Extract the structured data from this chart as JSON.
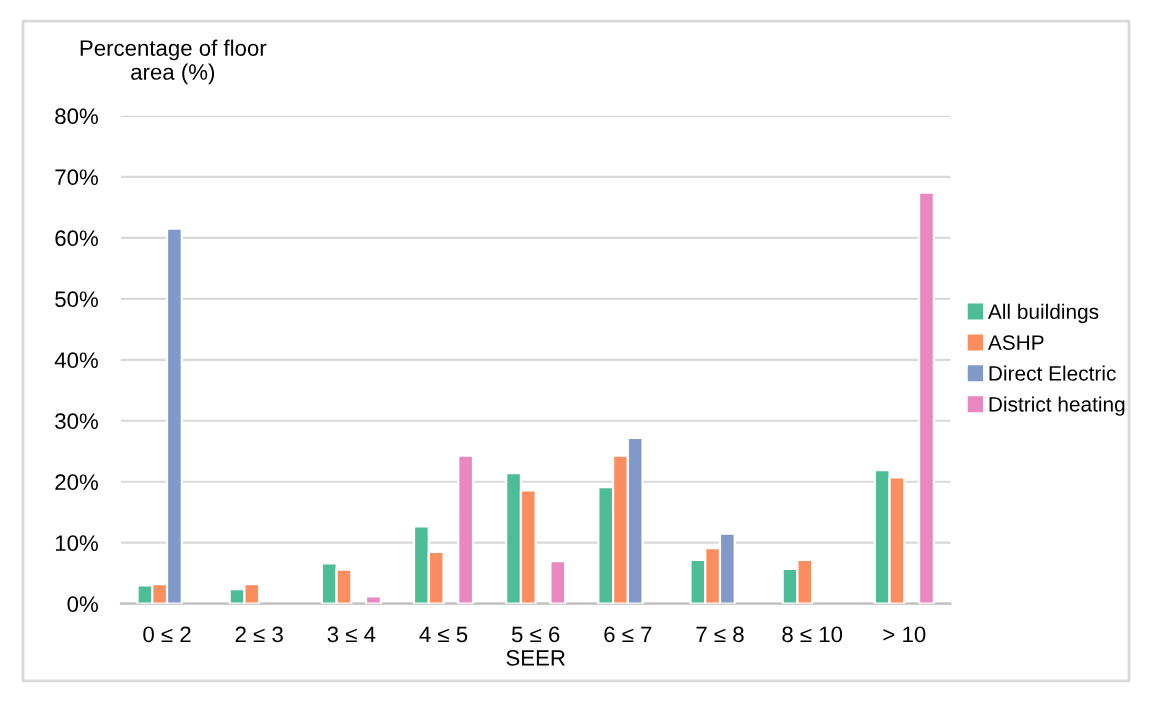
{
  "chart_data": {
    "type": "bar",
    "ylabel": "Percentage of floor\narea (%)",
    "xlabel": "SEER",
    "categories": [
      "0 ≤ 2",
      "2 ≤ 3",
      "3 ≤ 4",
      "4 ≤ 5",
      "5 ≤ 6",
      "6 ≤ 7",
      "7 ≤ 8",
      "8 ≤ 10",
      "> 10"
    ],
    "series": [
      {
        "name": "All buildings",
        "color": "#4dbd98",
        "values": [
          3.0,
          2.4,
          6.6,
          12.7,
          21.4,
          19.1,
          7.2,
          5.7,
          21.9
        ]
      },
      {
        "name": "ASHP",
        "color": "#fc8d5e",
        "values": [
          3.2,
          3.2,
          5.6,
          8.5,
          18.6,
          24.3,
          9.1,
          7.2,
          20.7
        ]
      },
      {
        "name": "Direct Electric",
        "color": "#8099c8",
        "values": [
          61.5,
          null,
          null,
          null,
          null,
          27.2,
          11.5,
          null,
          null
        ]
      },
      {
        "name": "District heating",
        "color": "#e887c0",
        "values": [
          null,
          null,
          1.2,
          24.3,
          7.0,
          null,
          null,
          null,
          67.4
        ]
      }
    ],
    "ylim": [
      0,
      80
    ],
    "yticks": [
      {
        "value": 0,
        "label": "0%"
      },
      {
        "value": 10,
        "label": "10%"
      },
      {
        "value": 20,
        "label": "20%"
      },
      {
        "value": 30,
        "label": "30%"
      },
      {
        "value": 40,
        "label": "40%"
      },
      {
        "value": 50,
        "label": "50%"
      },
      {
        "value": 60,
        "label": "60%"
      },
      {
        "value": 70,
        "label": "70%"
      },
      {
        "value": 80,
        "label": "80%"
      }
    ],
    "grid": "y",
    "legend": "right"
  }
}
